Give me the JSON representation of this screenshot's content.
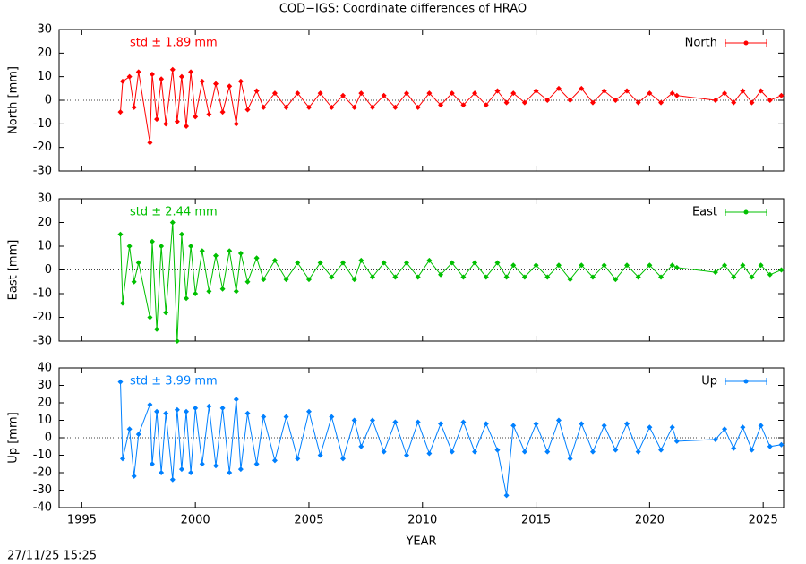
{
  "title": "COD−IGS: Coordinate differences of HRAO",
  "timestamp": "27/11/25 15:25",
  "chart_data": [
    {
      "type": "line",
      "ylabel": "North [mm]",
      "annotation": "std ± 1.89 mm",
      "xlim": [
        1994,
        2025.9
      ],
      "xticks": [
        1995,
        2000,
        2005,
        2010,
        2015,
        2020,
        2025
      ],
      "ylim": [
        -30,
        30
      ],
      "yticks": [
        -30,
        -20,
        -10,
        0,
        10,
        20,
        30
      ],
      "x": [
        1996.7,
        1996.8,
        1997.1,
        1997.3,
        1997.5,
        1998.0,
        1998.1,
        1998.3,
        1998.5,
        1998.7,
        1999.0,
        1999.2,
        1999.4,
        1999.6,
        1999.8,
        2000.0,
        2000.3,
        2000.6,
        2000.9,
        2001.2,
        2001.5,
        2001.8,
        2002.0,
        2002.3,
        2002.7,
        2003.0,
        2003.5,
        2004.0,
        2004.5,
        2005.0,
        2005.5,
        2006.0,
        2006.5,
        2007.0,
        2007.3,
        2007.8,
        2008.3,
        2008.8,
        2009.3,
        2009.8,
        2010.3,
        2010.8,
        2011.3,
        2011.8,
        2012.3,
        2012.8,
        2013.3,
        2013.7,
        2014.0,
        2014.5,
        2015.0,
        2015.5,
        2016.0,
        2016.5,
        2017.0,
        2017.5,
        2018.0,
        2018.5,
        2019.0,
        2019.5,
        2020.0,
        2020.5,
        2021.0,
        2021.2,
        2022.9,
        2023.3,
        2023.7,
        2024.1,
        2024.5,
        2024.9,
        2025.3,
        2025.8
      ],
      "series": [
        {
          "name": "North",
          "color": "#ff0000",
          "values": [
            -5,
            8,
            10,
            -3,
            12,
            -18,
            11,
            -8,
            9,
            -10,
            13,
            -9,
            10,
            -11,
            12,
            -7,
            8,
            -6,
            7,
            -5,
            6,
            -10,
            8,
            -4,
            4,
            -3,
            3,
            -3,
            3,
            -3,
            3,
            -3,
            2,
            -3,
            3,
            -3,
            2,
            -3,
            3,
            -3,
            3,
            -2,
            3,
            -2,
            3,
            -2,
            4,
            -1,
            3,
            -1,
            4,
            0,
            5,
            0,
            5,
            -1,
            4,
            0,
            4,
            -1,
            3,
            -1,
            3,
            2,
            0,
            3,
            -1,
            4,
            -1,
            4,
            0,
            2
          ]
        }
      ]
    },
    {
      "type": "line",
      "ylabel": "East [mm]",
      "annotation": "std ± 2.44 mm",
      "xlim": [
        1994,
        2025.9
      ],
      "xticks": [
        1995,
        2000,
        2005,
        2010,
        2015,
        2020,
        2025
      ],
      "ylim": [
        -30,
        30
      ],
      "yticks": [
        -30,
        -20,
        -10,
        0,
        10,
        20,
        30
      ],
      "x": [
        1996.7,
        1996.8,
        1997.1,
        1997.3,
        1997.5,
        1998.0,
        1998.1,
        1998.3,
        1998.5,
        1998.7,
        1999.0,
        1999.2,
        1999.4,
        1999.6,
        1999.8,
        2000.0,
        2000.3,
        2000.6,
        2000.9,
        2001.2,
        2001.5,
        2001.8,
        2002.0,
        2002.3,
        2002.7,
        2003.0,
        2003.5,
        2004.0,
        2004.5,
        2005.0,
        2005.5,
        2006.0,
        2006.5,
        2007.0,
        2007.3,
        2007.8,
        2008.3,
        2008.8,
        2009.3,
        2009.8,
        2010.3,
        2010.8,
        2011.3,
        2011.8,
        2012.3,
        2012.8,
        2013.3,
        2013.7,
        2014.0,
        2014.5,
        2015.0,
        2015.5,
        2016.0,
        2016.5,
        2017.0,
        2017.5,
        2018.0,
        2018.5,
        2019.0,
        2019.5,
        2020.0,
        2020.5,
        2021.0,
        2021.2,
        2022.9,
        2023.3,
        2023.7,
        2024.1,
        2024.5,
        2024.9,
        2025.3,
        2025.8
      ],
      "series": [
        {
          "name": "East",
          "color": "#00c000",
          "values": [
            15,
            -14,
            10,
            -5,
            3,
            -20,
            12,
            -25,
            10,
            -18,
            20,
            -30,
            15,
            -12,
            10,
            -10,
            8,
            -9,
            6,
            -8,
            8,
            -9,
            7,
            -5,
            5,
            -4,
            4,
            -4,
            3,
            -4,
            3,
            -3,
            3,
            -4,
            4,
            -3,
            3,
            -3,
            3,
            -3,
            4,
            -2,
            3,
            -3,
            3,
            -3,
            3,
            -3,
            2,
            -3,
            2,
            -3,
            2,
            -4,
            2,
            -3,
            2,
            -4,
            2,
            -3,
            2,
            -3,
            2,
            1,
            -1,
            2,
            -3,
            2,
            -3,
            2,
            -2,
            0
          ]
        }
      ]
    },
    {
      "type": "line",
      "ylabel": "Up [mm]",
      "annotation": "std ± 3.99 mm",
      "xlabel": "YEAR",
      "xlim": [
        1994,
        2025.9
      ],
      "xticks": [
        1995,
        2000,
        2005,
        2010,
        2015,
        2020,
        2025
      ],
      "ylim": [
        -40,
        40
      ],
      "yticks": [
        -40,
        -30,
        -20,
        -10,
        0,
        10,
        20,
        30,
        40
      ],
      "x": [
        1996.7,
        1996.8,
        1997.1,
        1997.3,
        1997.5,
        1998.0,
        1998.1,
        1998.3,
        1998.5,
        1998.7,
        1999.0,
        1999.2,
        1999.4,
        1999.6,
        1999.8,
        2000.0,
        2000.3,
        2000.6,
        2000.9,
        2001.2,
        2001.5,
        2001.8,
        2002.0,
        2002.3,
        2002.7,
        2003.0,
        2003.5,
        2004.0,
        2004.5,
        2005.0,
        2005.5,
        2006.0,
        2006.5,
        2007.0,
        2007.3,
        2007.8,
        2008.3,
        2008.8,
        2009.3,
        2009.8,
        2010.3,
        2010.8,
        2011.3,
        2011.8,
        2012.3,
        2012.8,
        2013.3,
        2013.7,
        2014.0,
        2014.5,
        2015.0,
        2015.5,
        2016.0,
        2016.5,
        2017.0,
        2017.5,
        2018.0,
        2018.5,
        2019.0,
        2019.5,
        2020.0,
        2020.5,
        2021.0,
        2021.2,
        2022.9,
        2023.3,
        2023.7,
        2024.1,
        2024.5,
        2024.9,
        2025.3,
        2025.8
      ],
      "series": [
        {
          "name": "Up",
          "color": "#0080ff",
          "values": [
            32,
            -12,
            5,
            -22,
            2,
            19,
            -15,
            15,
            -20,
            14,
            -24,
            16,
            -18,
            15,
            -20,
            17,
            -15,
            18,
            -16,
            17,
            -20,
            22,
            -18,
            14,
            -15,
            12,
            -13,
            12,
            -12,
            15,
            -10,
            12,
            -12,
            10,
            -5,
            10,
            -8,
            9,
            -10,
            9,
            -9,
            8,
            -8,
            9,
            -8,
            8,
            -7,
            -33,
            7,
            -8,
            8,
            -8,
            10,
            -12,
            8,
            -8,
            7,
            -7,
            8,
            -8,
            6,
            -7,
            6,
            -2,
            -1,
            5,
            -6,
            6,
            -7,
            7,
            -5,
            -4
          ]
        }
      ]
    }
  ]
}
